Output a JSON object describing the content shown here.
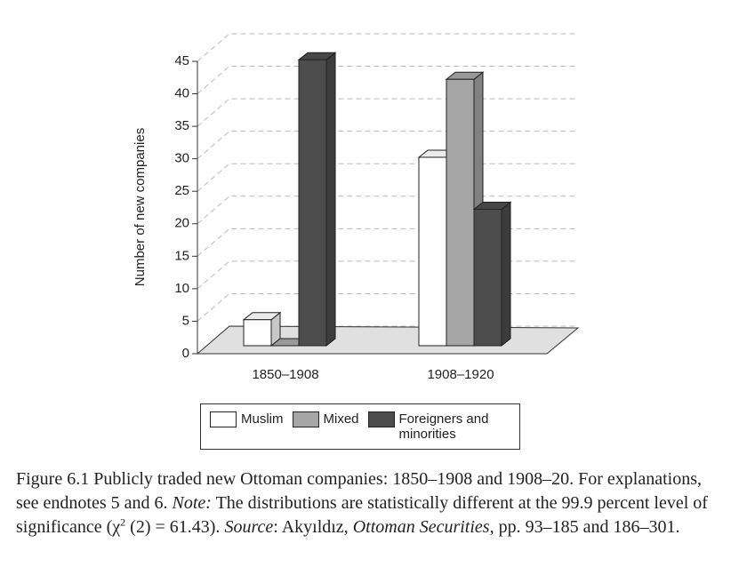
{
  "chart_data": {
    "type": "bar3d",
    "y_label": "Number of new companies",
    "categories": [
      "1850–1908",
      "1908–1920"
    ],
    "series": [
      {
        "name": "Muslim",
        "color": "#ffffff",
        "values": [
          4,
          29
        ]
      },
      {
        "name": "Mixed",
        "color": "#a6a6a6",
        "values": [
          0,
          41
        ]
      },
      {
        "name": "Foreigners and minorities",
        "color": "#4d4d4d",
        "values": [
          44,
          21
        ]
      }
    ],
    "ylim": [
      0,
      45
    ],
    "yticks": [
      0,
      5,
      10,
      15,
      20,
      25,
      30,
      35,
      40,
      45
    ],
    "grid": true
  },
  "caption": [
    {
      "text": "Figure 6.1  Publicly traded new Ottoman companies: 1850–1908 and 1908–20. For explanations, see endnotes 5 and 6. ",
      "style": "normal"
    },
    {
      "text": "Note:",
      "style": "italic"
    },
    {
      "text": " The distributions are statistically different at the 99.9 percent level of significance (χ",
      "style": "normal"
    },
    {
      "text": "2",
      "style": "sup"
    },
    {
      "text": " (2) = 61.43). ",
      "style": "normal"
    },
    {
      "text": "Source",
      "style": "italic"
    },
    {
      "text": ": Akyıldız, ",
      "style": "normal"
    },
    {
      "text": "Ottoman Securities",
      "style": "italic"
    },
    {
      "text": ", pp. 93–185 and 186–301.",
      "style": "normal"
    }
  ]
}
